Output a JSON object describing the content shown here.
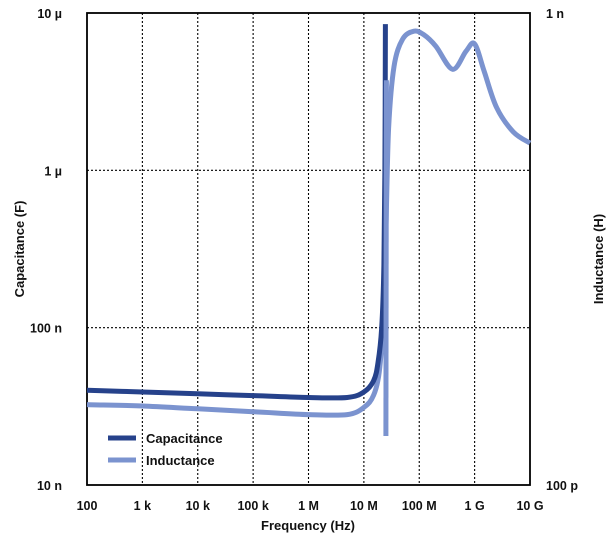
{
  "chart_data": {
    "type": "line",
    "title": "",
    "xlabel": "Frequency (Hz)",
    "ylabel": "Capacitance (F)",
    "y2label": "Inductance (H)",
    "x_scale": "log",
    "y_scale": "log",
    "xlim": [
      100,
      10000000000
    ],
    "ylim": [
      1e-08,
      1e-05
    ],
    "y2lim": [
      1e-10,
      1e-09
    ],
    "grid": true,
    "legend_position": "bottom-left",
    "x_ticks": [
      {
        "value": 100,
        "label": "100"
      },
      {
        "value": 1000,
        "label": "1 k"
      },
      {
        "value": 10000,
        "label": "10 k"
      },
      {
        "value": 100000,
        "label": "100 k"
      },
      {
        "value": 1000000,
        "label": "1 M"
      },
      {
        "value": 10000000,
        "label": "10 M"
      },
      {
        "value": 100000000,
        "label": "100 M"
      },
      {
        "value": 1000000000,
        "label": "1 G"
      },
      {
        "value": 10000000000,
        "label": "10 G"
      }
    ],
    "y_ticks": [
      {
        "value": 1e-05,
        "label": "10 µ"
      },
      {
        "value": 1e-06,
        "label": "1 µ"
      },
      {
        "value": 1e-07,
        "label": "100 n"
      },
      {
        "value": 1e-08,
        "label": "10 n"
      }
    ],
    "y2_ticks": [
      {
        "value": 1e-09,
        "label": "1 n"
      },
      {
        "value": 1e-10,
        "label": "100 p"
      }
    ],
    "series": [
      {
        "name": "Capacitance",
        "color": "#26428b",
        "axis": "left",
        "points": [
          [
            100,
            4e-08
          ],
          [
            1000,
            3.9e-08
          ],
          [
            10000,
            3.8e-08
          ],
          [
            100000,
            3.7e-08
          ],
          [
            1000000,
            3.6e-08
          ],
          [
            5000000,
            3.6e-08
          ],
          [
            10000000,
            3.9e-08
          ],
          [
            15000000,
            4.6e-08
          ],
          [
            18000000,
            6e-08
          ],
          [
            21000000,
            1e-07
          ],
          [
            23000000,
            2.5e-07
          ],
          [
            24000000,
            1e-06
          ],
          [
            24500000,
            8.5e-06
          ]
        ]
      },
      {
        "name": "Inductance",
        "color": "#7b93cf",
        "axis": "right",
        "points": [
          [
            100,
            1.48e-10
          ],
          [
            1000,
            1.47e-10
          ],
          [
            10000,
            1.45e-10
          ],
          [
            100000,
            1.43e-10
          ],
          [
            1000000,
            1.41e-10
          ],
          [
            5000000,
            1.41e-10
          ],
          [
            10000000,
            1.46e-10
          ],
          [
            15000000,
            1.55e-10
          ],
          [
            19000000,
            1.74e-10
          ],
          [
            22000000,
            2.2e-10
          ],
          [
            25000000,
            3.5e-10
          ],
          [
            28000000,
            5.7e-10
          ],
          [
            35000000,
            7.7e-10
          ],
          [
            50000000,
            8.8e-10
          ],
          [
            80000000,
            9.15e-10
          ],
          [
            120000000,
            9e-10
          ],
          [
            200000000,
            8.5e-10
          ],
          [
            400000000,
            7.6e-10
          ],
          [
            700000000,
            8.3e-10
          ],
          [
            1000000000,
            8.6e-10
          ],
          [
            1500000000,
            7.5e-10
          ],
          [
            2500000000,
            6.3e-10
          ],
          [
            5000000000,
            5.6e-10
          ],
          [
            10000000000,
            5.3e-10
          ]
        ]
      }
    ],
    "extra_segments": [
      {
        "series": "Inductance",
        "axis": "right",
        "points": [
          [
            25000000,
            1.27e-10
          ],
          [
            25500000,
            7.2e-10
          ]
        ]
      }
    ]
  }
}
